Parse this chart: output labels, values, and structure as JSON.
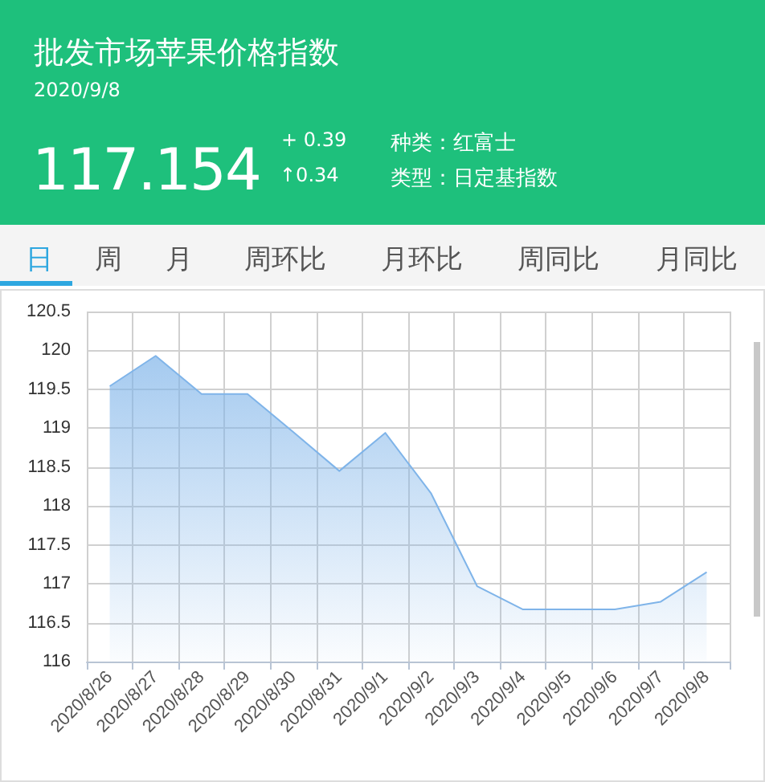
{
  "chart_data": {
    "type": "area",
    "title": "批发市场苹果价格指数",
    "subtitle": "2020/9/8",
    "annotations": [
      "117.154",
      "+ 0.39",
      "↑0.34",
      "种类：红富士",
      "类型：日定基指数",
      "日",
      "周",
      "月",
      "周环比",
      "月环比",
      "周同比",
      "月同比"
    ],
    "categories": [
      "2020/8/26",
      "2020/8/27",
      "2020/8/28",
      "2020/8/29",
      "2020/8/30",
      "2020/8/31",
      "2020/9/1",
      "2020/9/2",
      "2020/9/3",
      "2020/9/4",
      "2020/9/5",
      "2020/9/6",
      "2020/9/7",
      "2020/9/8"
    ],
    "series": [
      {
        "color": "#7fb4e9",
        "values": [
          119.54,
          119.93,
          119.44,
          119.44,
          118.95,
          118.45,
          118.94,
          118.16,
          116.97,
          116.67,
          116.67,
          116.67,
          116.77,
          117.15
        ]
      }
    ],
    "ylim": [
      116,
      120.5
    ],
    "yticks": [
      116,
      116.5,
      117,
      117.5,
      118,
      118.5,
      119,
      119.5,
      120,
      120.5
    ],
    "grid": true,
    "marker": "none",
    "line_style": "solid"
  }
}
